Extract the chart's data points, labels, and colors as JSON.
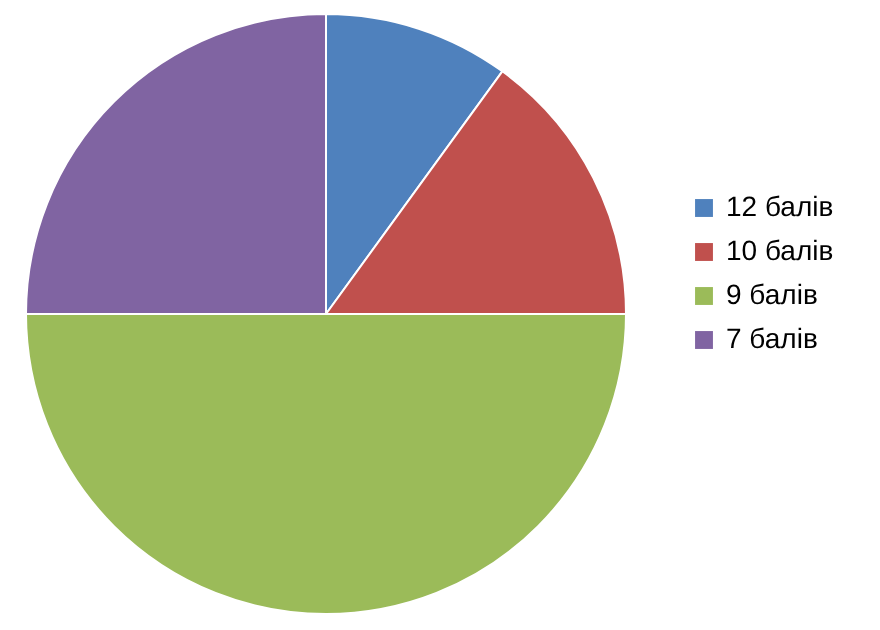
{
  "chart_data": {
    "type": "pie",
    "categories": [
      "12 балів",
      "10 балів",
      "9 балів",
      "7 балів"
    ],
    "values": [
      10,
      15,
      50,
      25
    ],
    "colors": [
      "#4f81bd",
      "#c0504d",
      "#9bbb59",
      "#8064a2"
    ],
    "legend": "right"
  }
}
